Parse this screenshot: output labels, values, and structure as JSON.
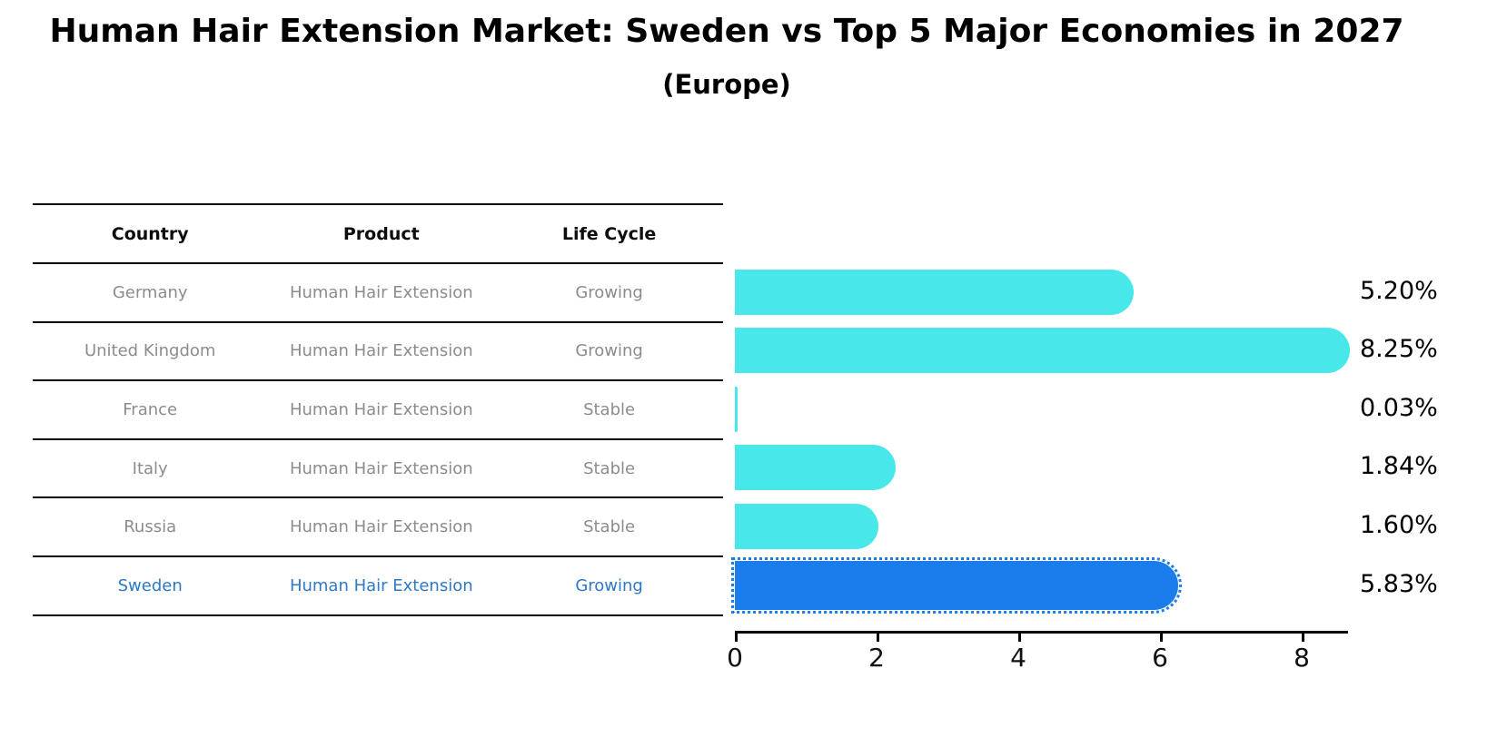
{
  "title": "Human Hair Extension Market: Sweden vs Top 5 Major Economies in 2027",
  "subtitle": "(Europe)",
  "table": {
    "headers": [
      "Country",
      "Product",
      "Life Cycle"
    ],
    "rows": [
      {
        "country": "Germany",
        "product": "Human Hair Extension",
        "life_cycle": "Growing",
        "highlight": false
      },
      {
        "country": "United Kingdom",
        "product": "Human Hair Extension",
        "life_cycle": "Growing",
        "highlight": false
      },
      {
        "country": "France",
        "product": "Human Hair Extension",
        "life_cycle": "Stable",
        "highlight": false
      },
      {
        "country": "Italy",
        "product": "Human Hair Extension",
        "life_cycle": "Stable",
        "highlight": false
      },
      {
        "country": "Russia",
        "product": "Human Hair Extension",
        "life_cycle": "Stable",
        "highlight": false
      },
      {
        "country": "Sweden",
        "product": "Human Hair Extension",
        "life_cycle": "Growing",
        "highlight": true
      }
    ]
  },
  "chart_data": {
    "type": "bar",
    "orientation": "horizontal",
    "title": "Human Hair Extension Market: Sweden vs Top 5 Major Economies in 2027 (Europe)",
    "categories": [
      "Germany",
      "United Kingdom",
      "France",
      "Italy",
      "Russia",
      "Sweden"
    ],
    "values": [
      5.2,
      8.25,
      0.03,
      1.84,
      1.6,
      5.83
    ],
    "value_labels": [
      "5.20%",
      "8.25%",
      "0.03%",
      "1.84%",
      "1.60%",
      "5.83%"
    ],
    "highlight_index": 5,
    "xticks": [
      0,
      2,
      4,
      6,
      8
    ],
    "xlim": [
      0,
      8.65
    ],
    "xlabel": "",
    "ylabel": "",
    "grid": false,
    "legend": false,
    "bar_color": "#48e8ea",
    "highlight_color": "#1a7deb"
  },
  "colors": {
    "table_text": "#8c8c8c",
    "table_highlight_text": "#2e78c8",
    "axis": "#000000",
    "background": "#ffffff"
  }
}
